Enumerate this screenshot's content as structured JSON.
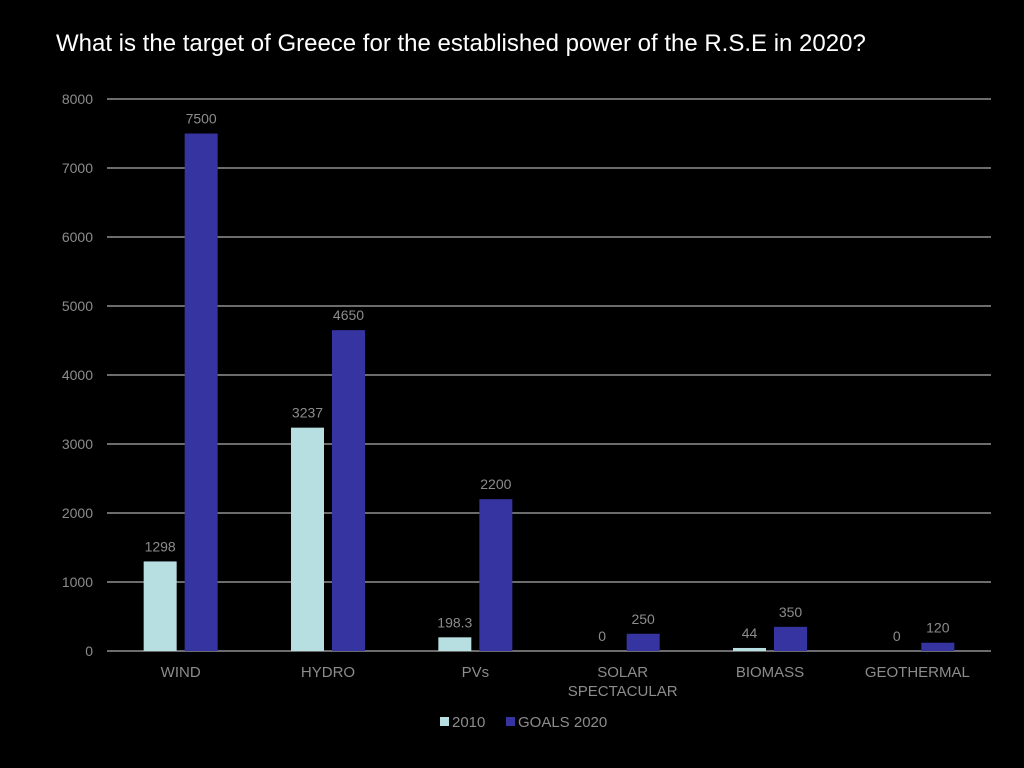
{
  "title": "What is the target of Greece for the established power of the R.S.E in 2020?",
  "colors": {
    "background": "#000000",
    "title": "#ffffff",
    "gridline": "#d9d9d9",
    "text": "#8c8c8c",
    "series_2010": "#b7dee1",
    "series_goals_2020": "#3634a0"
  },
  "chart_data": {
    "type": "bar",
    "categories": [
      "WIND",
      "HYDRO",
      "PVs",
      "SOLAR SPECTACULAR",
      "BIOMASS",
      "GEOTHERMAL"
    ],
    "category_lines": [
      [
        "WIND"
      ],
      [
        "HYDRO"
      ],
      [
        "PVs"
      ],
      [
        "SOLAR",
        "SPECTACULAR"
      ],
      [
        "BIOMASS"
      ],
      [
        "GEOTHERMAL"
      ]
    ],
    "series": [
      {
        "name": "2010",
        "values": [
          1298,
          3237,
          198.3,
          0,
          44,
          0
        ],
        "labels": [
          "1298",
          "3237",
          "198.3",
          "0",
          "44",
          "0"
        ],
        "color": "#b7dee1"
      },
      {
        "name": "GOALS 2020",
        "values": [
          7500,
          4650,
          2200,
          250,
          350,
          120
        ],
        "labels": [
          "7500",
          "4650",
          "2200",
          "250",
          "350",
          "120"
        ],
        "color": "#3634a0"
      }
    ],
    "ylim": [
      0,
      8000
    ],
    "yticks": [
      "0",
      "1000",
      "2000",
      "3000",
      "4000",
      "5000",
      "6000",
      "7000",
      "8000"
    ],
    "grid": true,
    "legend_position": "bottom",
    "xlabel": "",
    "ylabel": ""
  }
}
